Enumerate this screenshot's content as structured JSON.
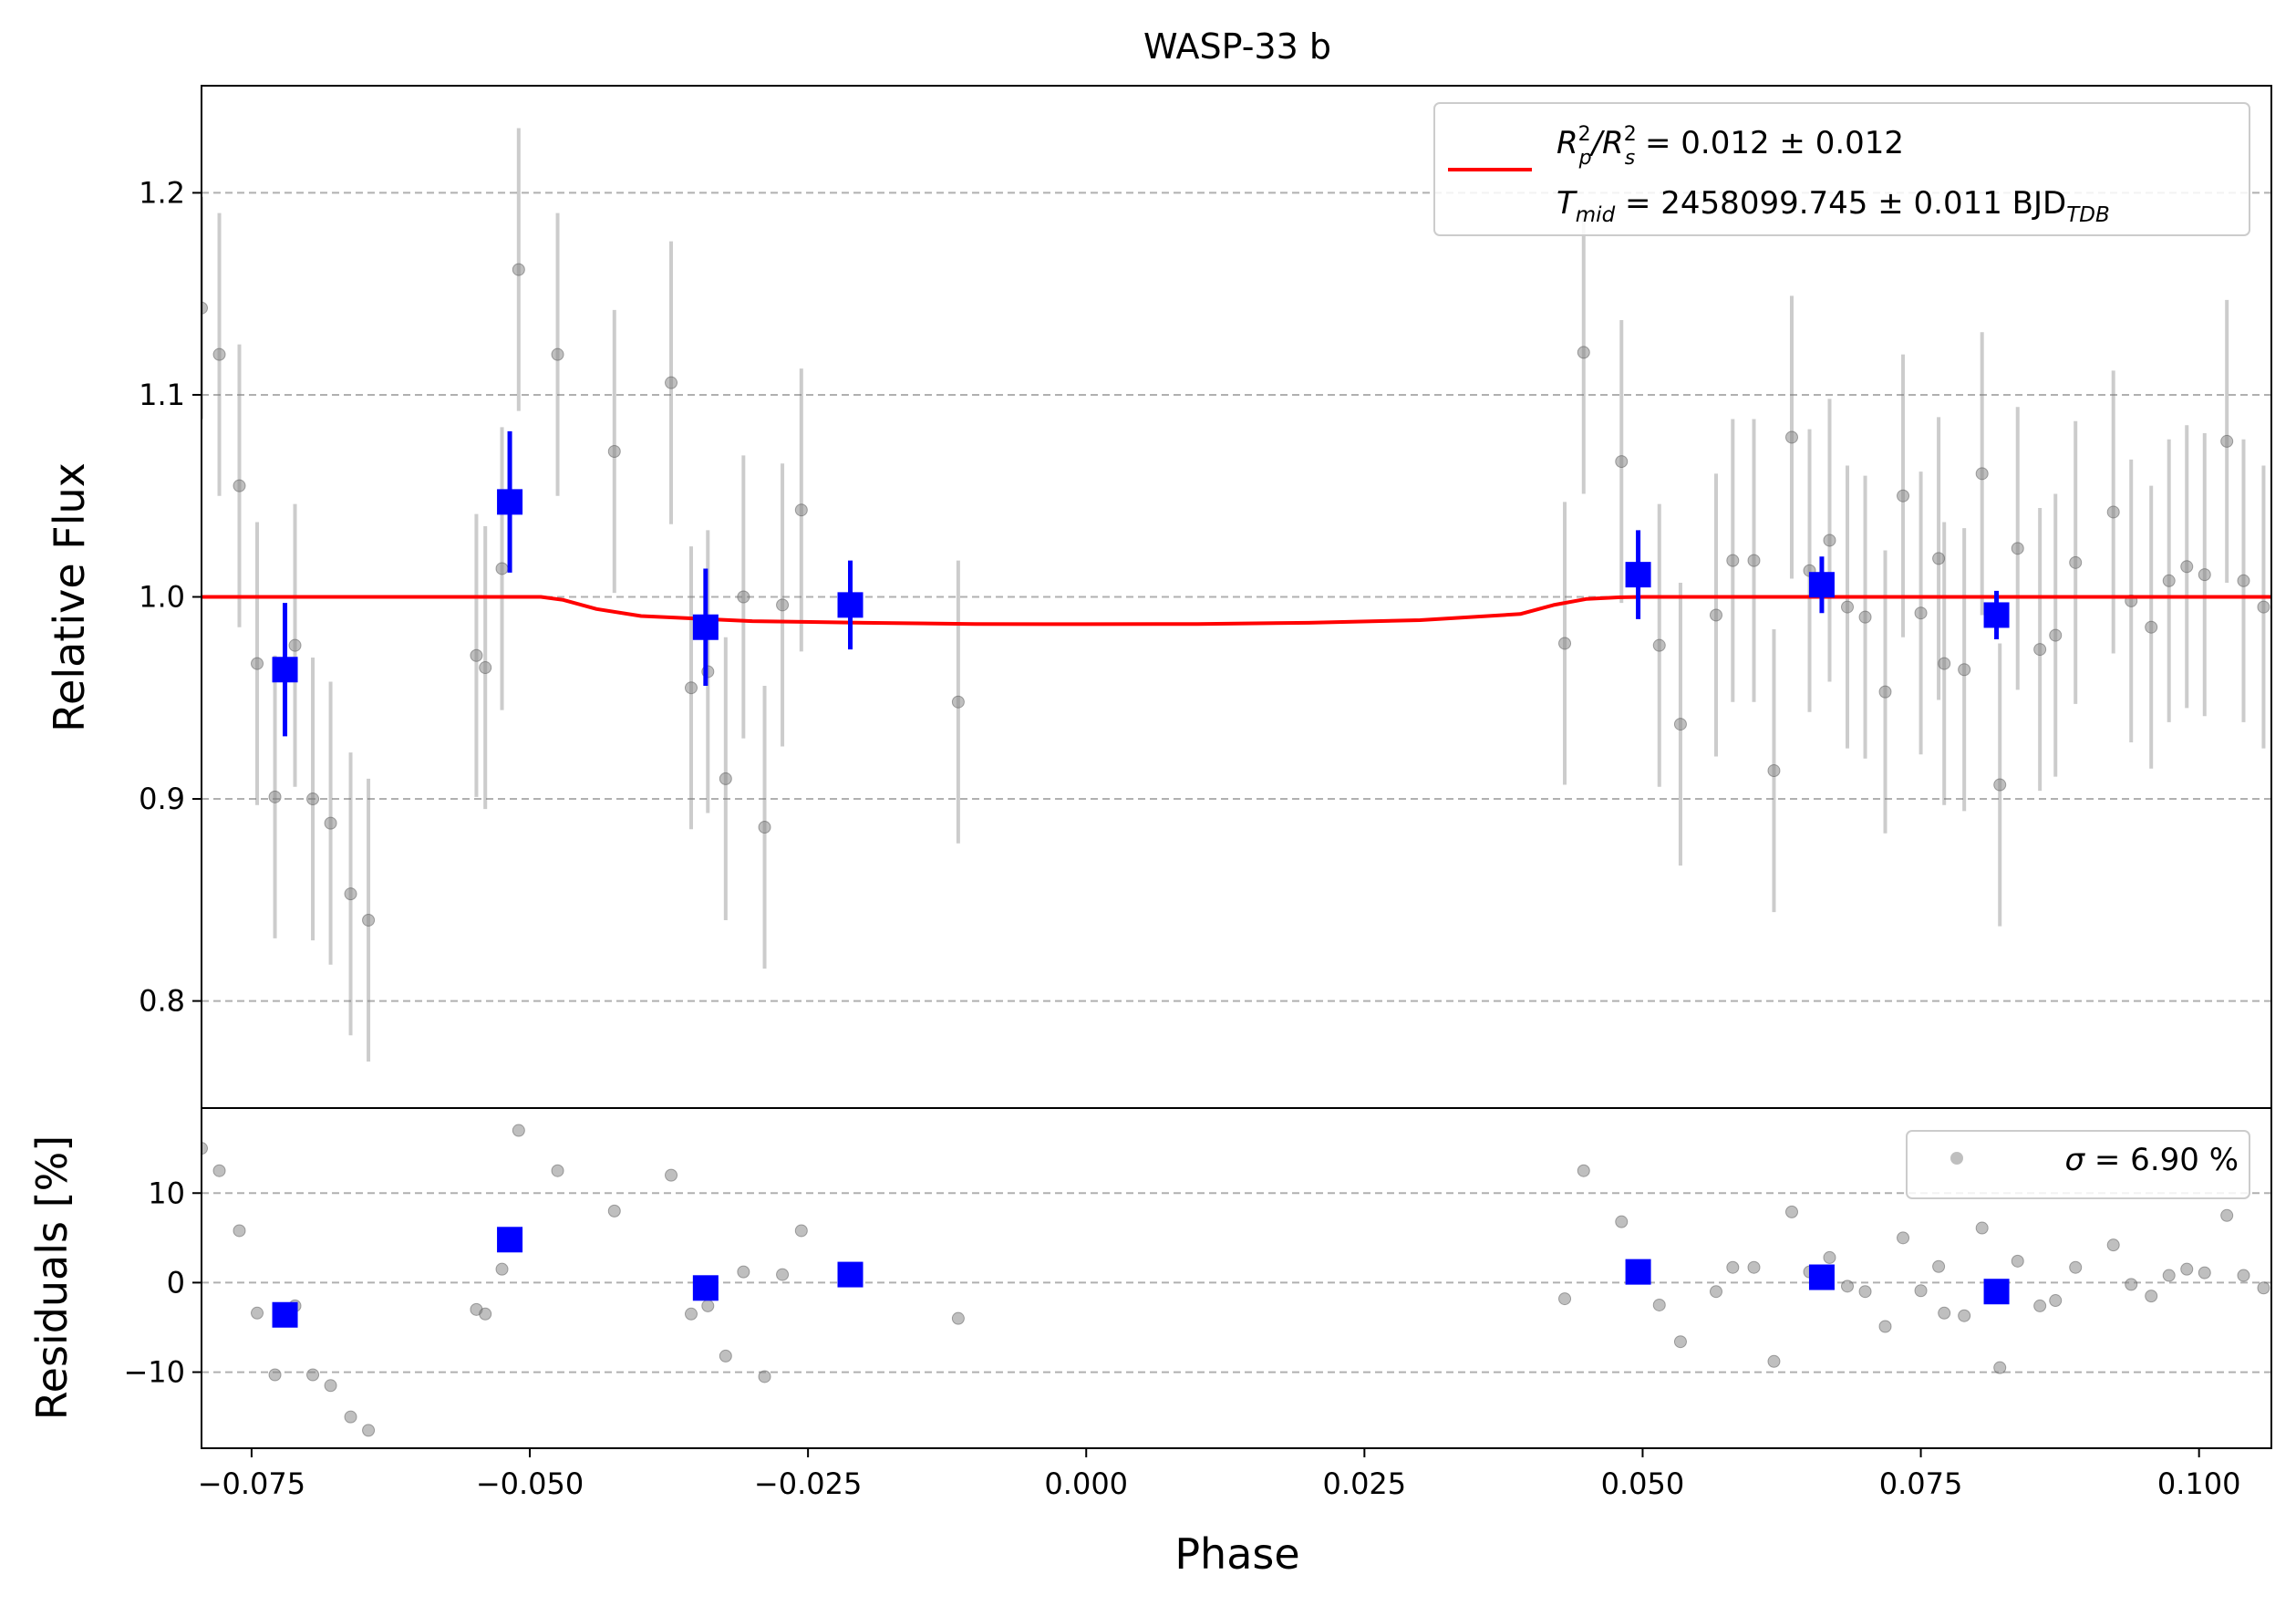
{
  "chart_data": [
    {
      "type": "scatter",
      "panel": "main",
      "title": "WASP-33 b",
      "xlabel": "",
      "ylabel": "Relative Flux",
      "xlim": [
        -0.0795,
        0.1065
      ],
      "ylim": [
        0.747,
        1.253
      ],
      "yticks": [
        0.8,
        0.9,
        1.0,
        1.1,
        1.2
      ],
      "ytick_labels": [
        "0.8",
        "0.9",
        "1.0",
        "1.1",
        "1.2"
      ],
      "grid": "horizontal dashed",
      "legend": {
        "placement": "top-right",
        "line_color": "#ff0000",
        "line1": {
          "main": "R",
          "s1_sup": "2",
          "s1_sub": "p",
          "mid": "/R",
          "s2_sup": "2",
          "s2_sub": "s",
          "tail": " = 0.012 ± 0.012"
        },
        "line2": {
          "main": "T",
          "sub": "mid",
          "tail": " = 2458099.745 ± 0.011 BJD",
          "tail_sub": "TDB"
        }
      },
      "series": [
        {
          "kind": "raw",
          "color": "#808080",
          "x": [
            -0.0795,
            -0.0779,
            -0.0761,
            -0.0745,
            -0.0729,
            -0.0711,
            -0.0695,
            -0.0679,
            -0.0661,
            -0.0645,
            -0.0548,
            -0.054,
            -0.0525,
            -0.051,
            -0.0475,
            -0.0424,
            -0.0373,
            -0.0355,
            -0.034,
            -0.0324,
            -0.0308,
            -0.0289,
            -0.0273,
            -0.0256,
            -0.0115,
            0.043,
            0.0447,
            0.0481,
            0.0515,
            0.0534,
            0.0566,
            0.0581,
            0.06,
            0.0618,
            0.0634,
            0.065,
            0.0668,
            0.0684,
            0.07,
            0.0718,
            0.0734,
            0.075,
            0.0766,
            0.0771,
            0.0789,
            0.0805,
            0.0821,
            0.0837,
            0.0857,
            0.0871,
            0.0889,
            0.0923,
            0.0939,
            0.0957,
            0.0973,
            0.0989,
            0.1005,
            0.1025,
            0.104,
            0.1058
          ],
          "y": [
            1.143,
            1.12,
            1.055,
            0.967,
            0.901,
            0.976,
            0.9,
            0.888,
            0.853,
            0.84,
            0.971,
            0.965,
            1.014,
            1.162,
            1.12,
            1.072,
            1.106,
            0.955,
            0.963,
            0.91,
            1.0,
            0.886,
            0.996,
            1.043,
            0.948,
            0.977,
            1.121,
            1.067,
            0.976,
            0.937,
            0.991,
            1.018,
            1.018,
            0.914,
            1.079,
            1.013,
            1.028,
            0.995,
            0.99,
            0.953,
            1.05,
            0.992,
            1.019,
            0.967,
            0.964,
            1.061,
            0.907,
            1.024,
            0.974,
            0.981,
            1.017,
            1.042,
            0.998,
            0.985,
            1.008,
            1.015,
            1.011,
            1.077,
            1.008,
            0.995
          ],
          "yerr": [
            0.055,
            0.07,
            0.07,
            0.07,
            0.07,
            0.07,
            0.07,
            0.07,
            0.07,
            0.07,
            0.07,
            0.07,
            0.07,
            0.07,
            0.07,
            0.07,
            0.07,
            0.07,
            0.07,
            0.07,
            0.07,
            0.07,
            0.07,
            0.07,
            0.07,
            0.07,
            0.07,
            0.07,
            0.07,
            0.07,
            0.07,
            0.07,
            0.07,
            0.07,
            0.07,
            0.07,
            0.07,
            0.07,
            0.07,
            0.07,
            0.07,
            0.07,
            0.07,
            0.07,
            0.07,
            0.07,
            0.07,
            0.07,
            0.07,
            0.07,
            0.07,
            0.07,
            0.07,
            0.07,
            0.07,
            0.07,
            0.07,
            0.07,
            0.07,
            0.07
          ]
        },
        {
          "kind": "binned",
          "color": "#0000ff",
          "x": [
            -0.072,
            -0.0518,
            -0.0342,
            -0.0212,
            0.0496,
            0.0661,
            0.0818
          ],
          "y": [
            0.964,
            1.047,
            0.985,
            0.996,
            1.011,
            1.006,
            0.991
          ],
          "yerr": [
            0.033,
            0.035,
            0.029,
            0.022,
            0.022,
            0.014,
            0.012
          ]
        },
        {
          "kind": "model",
          "color": "#ff0000",
          "x": [
            -0.0795,
            -0.049,
            -0.047,
            -0.044,
            -0.04,
            -0.03,
            -0.02,
            -0.01,
            0.0,
            0.01,
            0.02,
            0.03,
            0.039,
            0.042,
            0.045,
            0.048,
            0.05,
            0.1065
          ],
          "y": [
            1.0,
            1.0,
            0.9985,
            0.994,
            0.9905,
            0.988,
            0.9872,
            0.9866,
            0.9865,
            0.9866,
            0.9872,
            0.9885,
            0.9915,
            0.996,
            0.999,
            0.9998,
            1.0,
            1.0
          ]
        }
      ]
    },
    {
      "type": "scatter",
      "panel": "residuals",
      "xlabel": "Phase",
      "ylabel": "Residuals [%]",
      "xlim": [
        -0.0795,
        0.1065
      ],
      "ylim": [
        -18.5,
        19.5
      ],
      "yticks": [
        -10,
        0,
        10
      ],
      "ytick_labels": [
        "−10",
        "0",
        "10"
      ],
      "xticks": [
        -0.075,
        -0.05,
        -0.025,
        0.0,
        0.025,
        0.05,
        0.075,
        0.1
      ],
      "xtick_labels": [
        "−0.075",
        "−0.050",
        "−0.025",
        "0.000",
        "0.025",
        "0.050",
        "0.075",
        "0.100"
      ],
      "grid": "horizontal dashed",
      "legend": {
        "placement": "top-right",
        "marker_color": "#808080",
        "sigma": "σ",
        "text": " = 6.90 %"
      },
      "series": [
        {
          "kind": "raw",
          "color": "#808080",
          "x": [
            -0.0795,
            -0.0779,
            -0.0761,
            -0.0745,
            -0.0729,
            -0.0711,
            -0.0695,
            -0.0679,
            -0.0661,
            -0.0645,
            -0.0548,
            -0.054,
            -0.0525,
            -0.051,
            -0.0475,
            -0.0424,
            -0.0373,
            -0.0355,
            -0.034,
            -0.0324,
            -0.0308,
            -0.0289,
            -0.0273,
            -0.0256,
            -0.0115,
            0.043,
            0.0447,
            0.0481,
            0.0515,
            0.0534,
            0.0566,
            0.0581,
            0.06,
            0.0618,
            0.0634,
            0.065,
            0.0668,
            0.0684,
            0.07,
            0.0718,
            0.0734,
            0.075,
            0.0766,
            0.0771,
            0.0789,
            0.0805,
            0.0821,
            0.0837,
            0.0857,
            0.0871,
            0.0889,
            0.0923,
            0.0939,
            0.0957,
            0.0973,
            0.0989,
            0.1005,
            0.1025,
            0.104,
            0.1058
          ],
          "y": [
            15.0,
            12.5,
            5.8,
            -3.4,
            -10.3,
            -2.6,
            -10.3,
            -11.5,
            -15.0,
            -16.5,
            -3.0,
            -3.5,
            1.5,
            17.0,
            12.5,
            8.0,
            12.0,
            -3.5,
            -2.6,
            -8.2,
            1.2,
            -10.5,
            0.9,
            5.8,
            -4.0,
            -1.8,
            12.5,
            6.8,
            -2.5,
            -6.6,
            -1.0,
            1.7,
            1.7,
            -8.8,
            7.9,
            1.2,
            2.8,
            -0.4,
            -1.0,
            -4.9,
            5.0,
            -0.9,
            1.8,
            -3.4,
            -3.7,
            6.1,
            -9.5,
            2.4,
            -2.6,
            -2.0,
            1.7,
            4.2,
            -0.2,
            -1.5,
            0.8,
            1.5,
            1.1,
            7.5,
            0.8,
            -0.6
          ]
        },
        {
          "kind": "binned",
          "color": "#0000ff",
          "x": [
            -0.072,
            -0.0518,
            -0.0342,
            -0.0212,
            0.0496,
            0.0661,
            0.0818
          ],
          "y": [
            -3.6,
            4.8,
            -0.6,
            0.9,
            1.2,
            0.6,
            -1.0
          ]
        },
        {
          "kind": "zero",
          "color": "#ff0000",
          "y": 0
        }
      ]
    }
  ]
}
